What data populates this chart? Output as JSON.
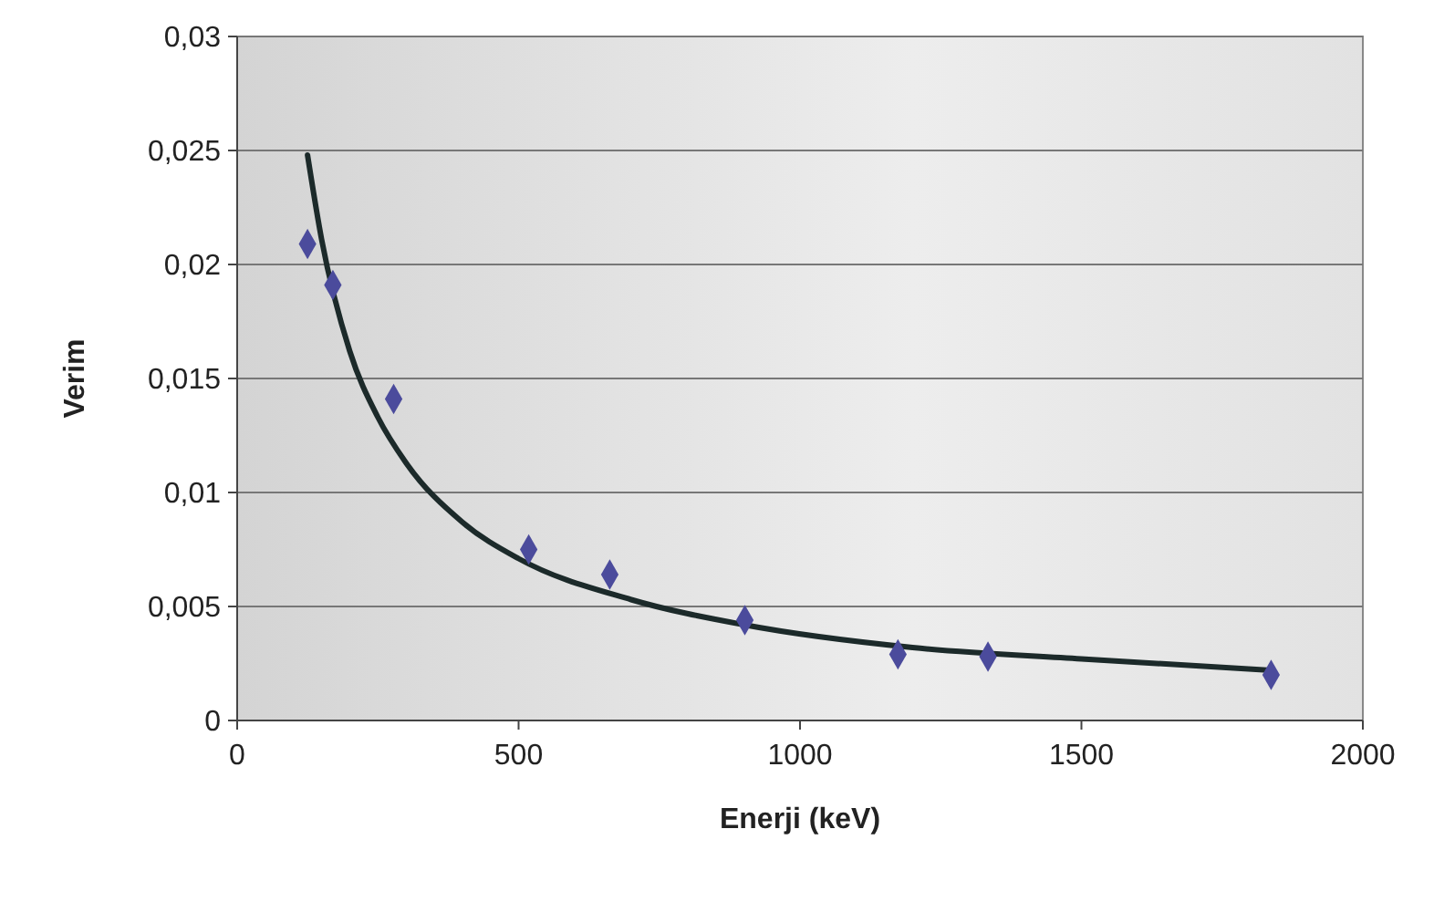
{
  "chart_data": {
    "type": "scatter",
    "xlabel": "Enerji (keV)",
    "ylabel": "Verim",
    "xlim": [
      0,
      2000
    ],
    "xticks": [
      0,
      500,
      1000,
      1500,
      2000
    ],
    "ylim": [
      0,
      0.03
    ],
    "yticks": [
      {
        "value": 0,
        "label": "0"
      },
      {
        "value": 0.005,
        "label": "0,005"
      },
      {
        "value": 0.01,
        "label": "0,01"
      },
      {
        "value": 0.015,
        "label": "0,015"
      },
      {
        "value": 0.02,
        "label": "0,02"
      },
      {
        "value": 0.025,
        "label": "0,025"
      },
      {
        "value": 0.03,
        "label": "0,03"
      }
    ],
    "grid": "y",
    "series": [
      {
        "color": "#4b4b9c",
        "marker": "diamond",
        "x": [
          125,
          170,
          278,
          518,
          662,
          902,
          1174,
          1334,
          1837
        ],
        "values": [
          0.0209,
          0.0191,
          0.0141,
          0.0075,
          0.0064,
          0.0044,
          0.0029,
          0.0028,
          0.002
        ]
      },
      {
        "type": "line",
        "color": "#1c2a2a",
        "marker": "none",
        "line_style": "solid",
        "x": [
          125,
          150,
          200,
          250,
          300,
          400,
          500,
          700,
          900,
          1200,
          1500,
          1837
        ],
        "values": [
          0.0248,
          0.0211,
          0.0162,
          0.0133,
          0.0113,
          0.0087,
          0.0071,
          0.0053,
          0.0042,
          0.0032,
          0.0027,
          0.0022
        ]
      }
    ]
  }
}
